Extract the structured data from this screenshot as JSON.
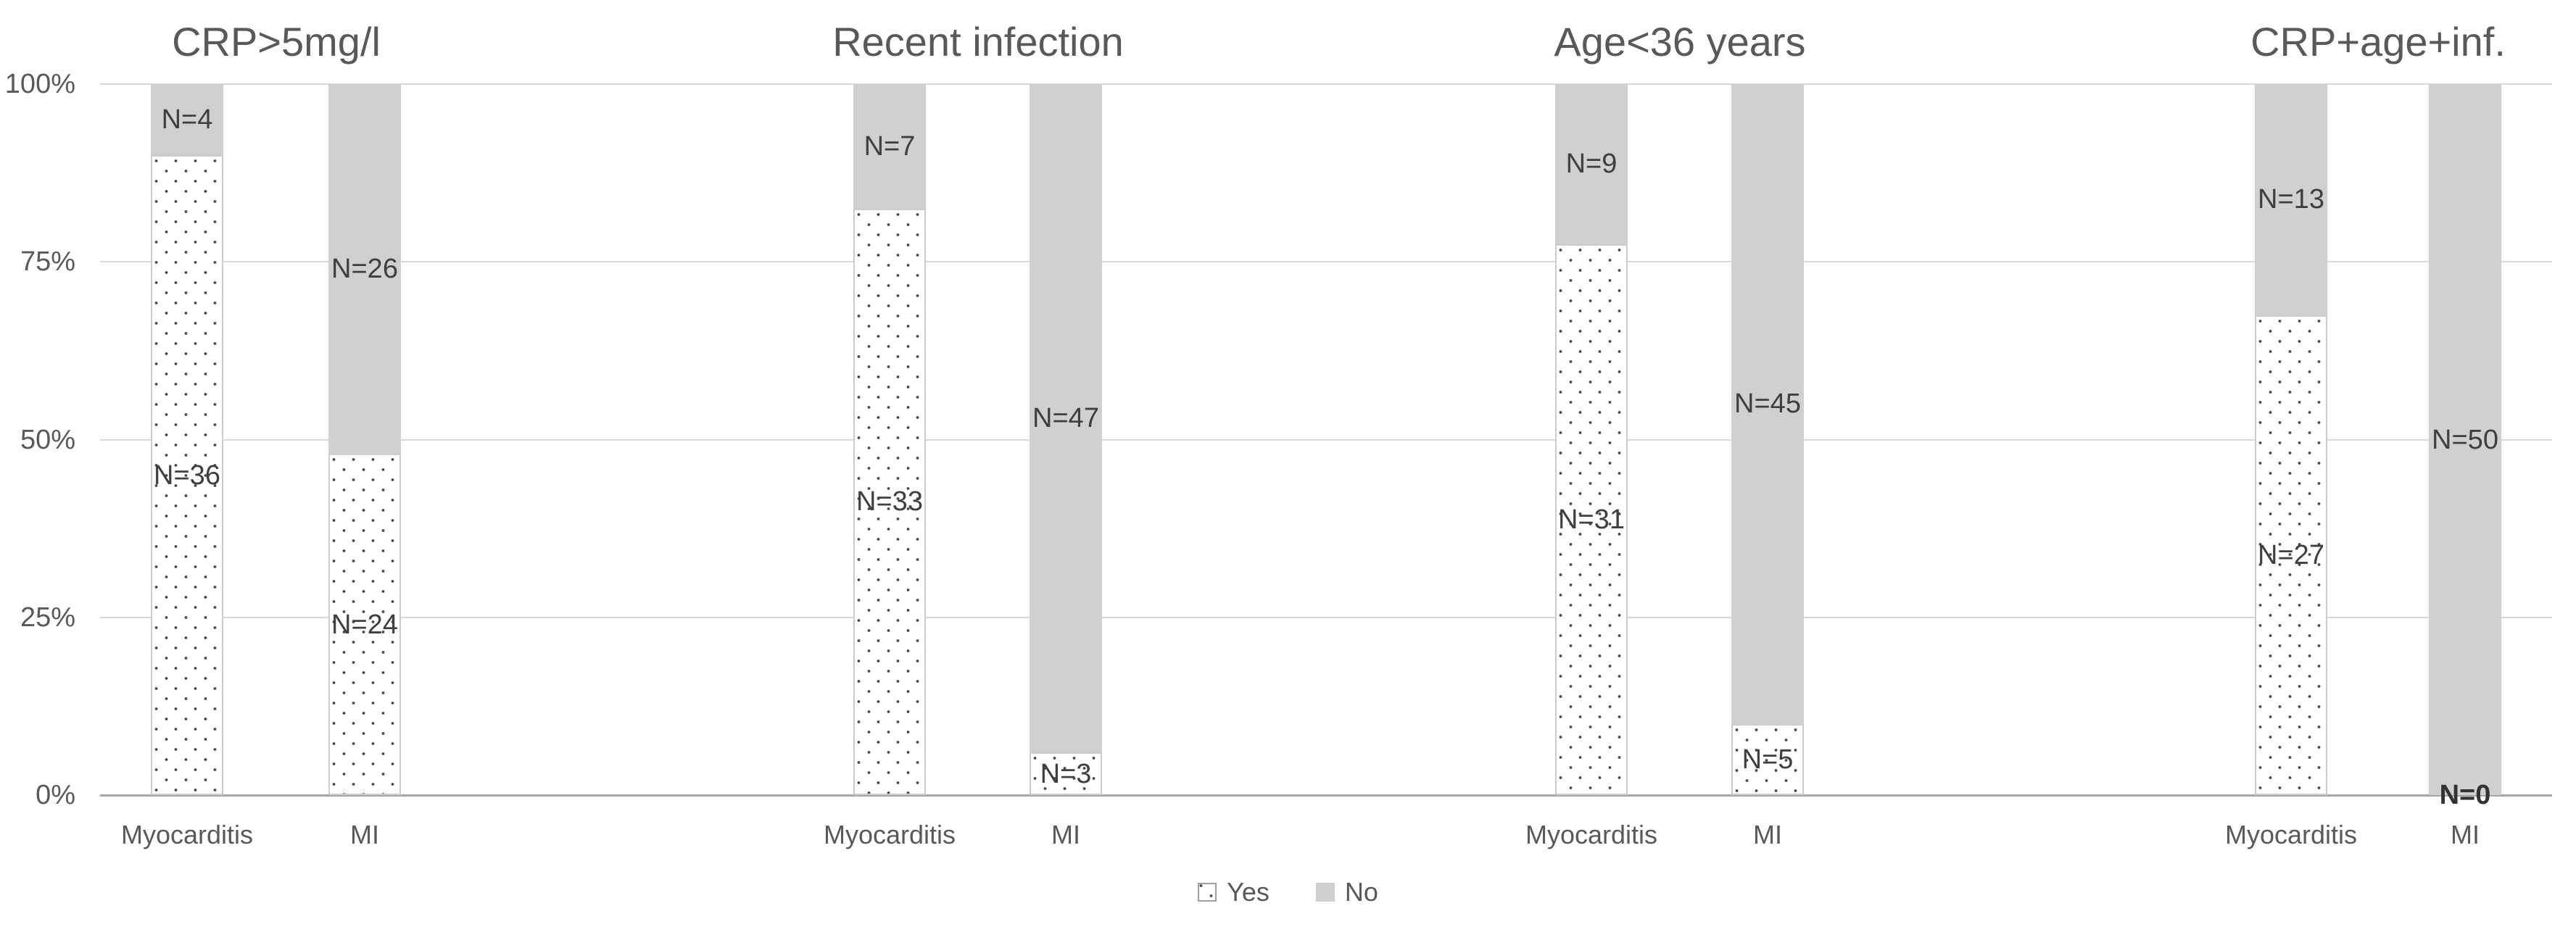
{
  "chart_data": {
    "type": "bar",
    "variant": "100%-stacked-columns",
    "title": "",
    "ylabel": "",
    "xlabel": "",
    "ylim": [
      0,
      100
    ],
    "grid": true,
    "legend_position": "bottom-center",
    "y_axis": {
      "values": [
        100,
        75,
        50,
        25,
        0
      ],
      "ticks": [
        "100%",
        "75%",
        "50%",
        "25%",
        "0%"
      ]
    },
    "legend": [
      {
        "label": "Yes",
        "style": "dotted-pattern"
      },
      {
        "label": "No",
        "style": "solid-gray"
      }
    ],
    "label_format": "N=",
    "groups": [
      {
        "title": "CRP>5mg/l",
        "bars": [
          {
            "category": "Myocarditis",
            "yes": {
              "n": 36,
              "pct": 90
            },
            "no": {
              "n": 4,
              "pct": 10
            }
          },
          {
            "category": "MI",
            "yes": {
              "n": 24,
              "pct": 48
            },
            "no": {
              "n": 26,
              "pct": 52
            }
          }
        ]
      },
      {
        "title": "Recent infection",
        "bars": [
          {
            "category": "Myocarditis",
            "yes": {
              "n": 33,
              "pct": 82.5
            },
            "no": {
              "n": 7,
              "pct": 17.5
            }
          },
          {
            "category": "MI",
            "yes": {
              "n": 3,
              "pct": 6
            },
            "no": {
              "n": 47,
              "pct": 94
            }
          }
        ]
      },
      {
        "title": "Age<36 years",
        "bars": [
          {
            "category": "Myocarditis",
            "yes": {
              "n": 31,
              "pct": 77.5
            },
            "no": {
              "n": 9,
              "pct": 22.5
            }
          },
          {
            "category": "MI",
            "yes": {
              "n": 5,
              "pct": 10
            },
            "no": {
              "n": 45,
              "pct": 90
            }
          }
        ]
      },
      {
        "title": "CRP+age+inf.",
        "bars": [
          {
            "category": "Myocarditis",
            "yes": {
              "n": 27,
              "pct": 67.5
            },
            "no": {
              "n": 13,
              "pct": 32.5
            }
          },
          {
            "category": "MI",
            "yes": {
              "n": 0,
              "pct": 0
            },
            "no": {
              "n": 50,
              "pct": 100
            }
          }
        ]
      }
    ],
    "colors": {
      "no_fill": "#d0d0d0",
      "yes_dot": "#4a4a4a",
      "gridline": "#d9d9d9",
      "axis_line": "#a6a6a6",
      "axis_text": "#595959",
      "label_text": "#3f3f3f"
    }
  }
}
